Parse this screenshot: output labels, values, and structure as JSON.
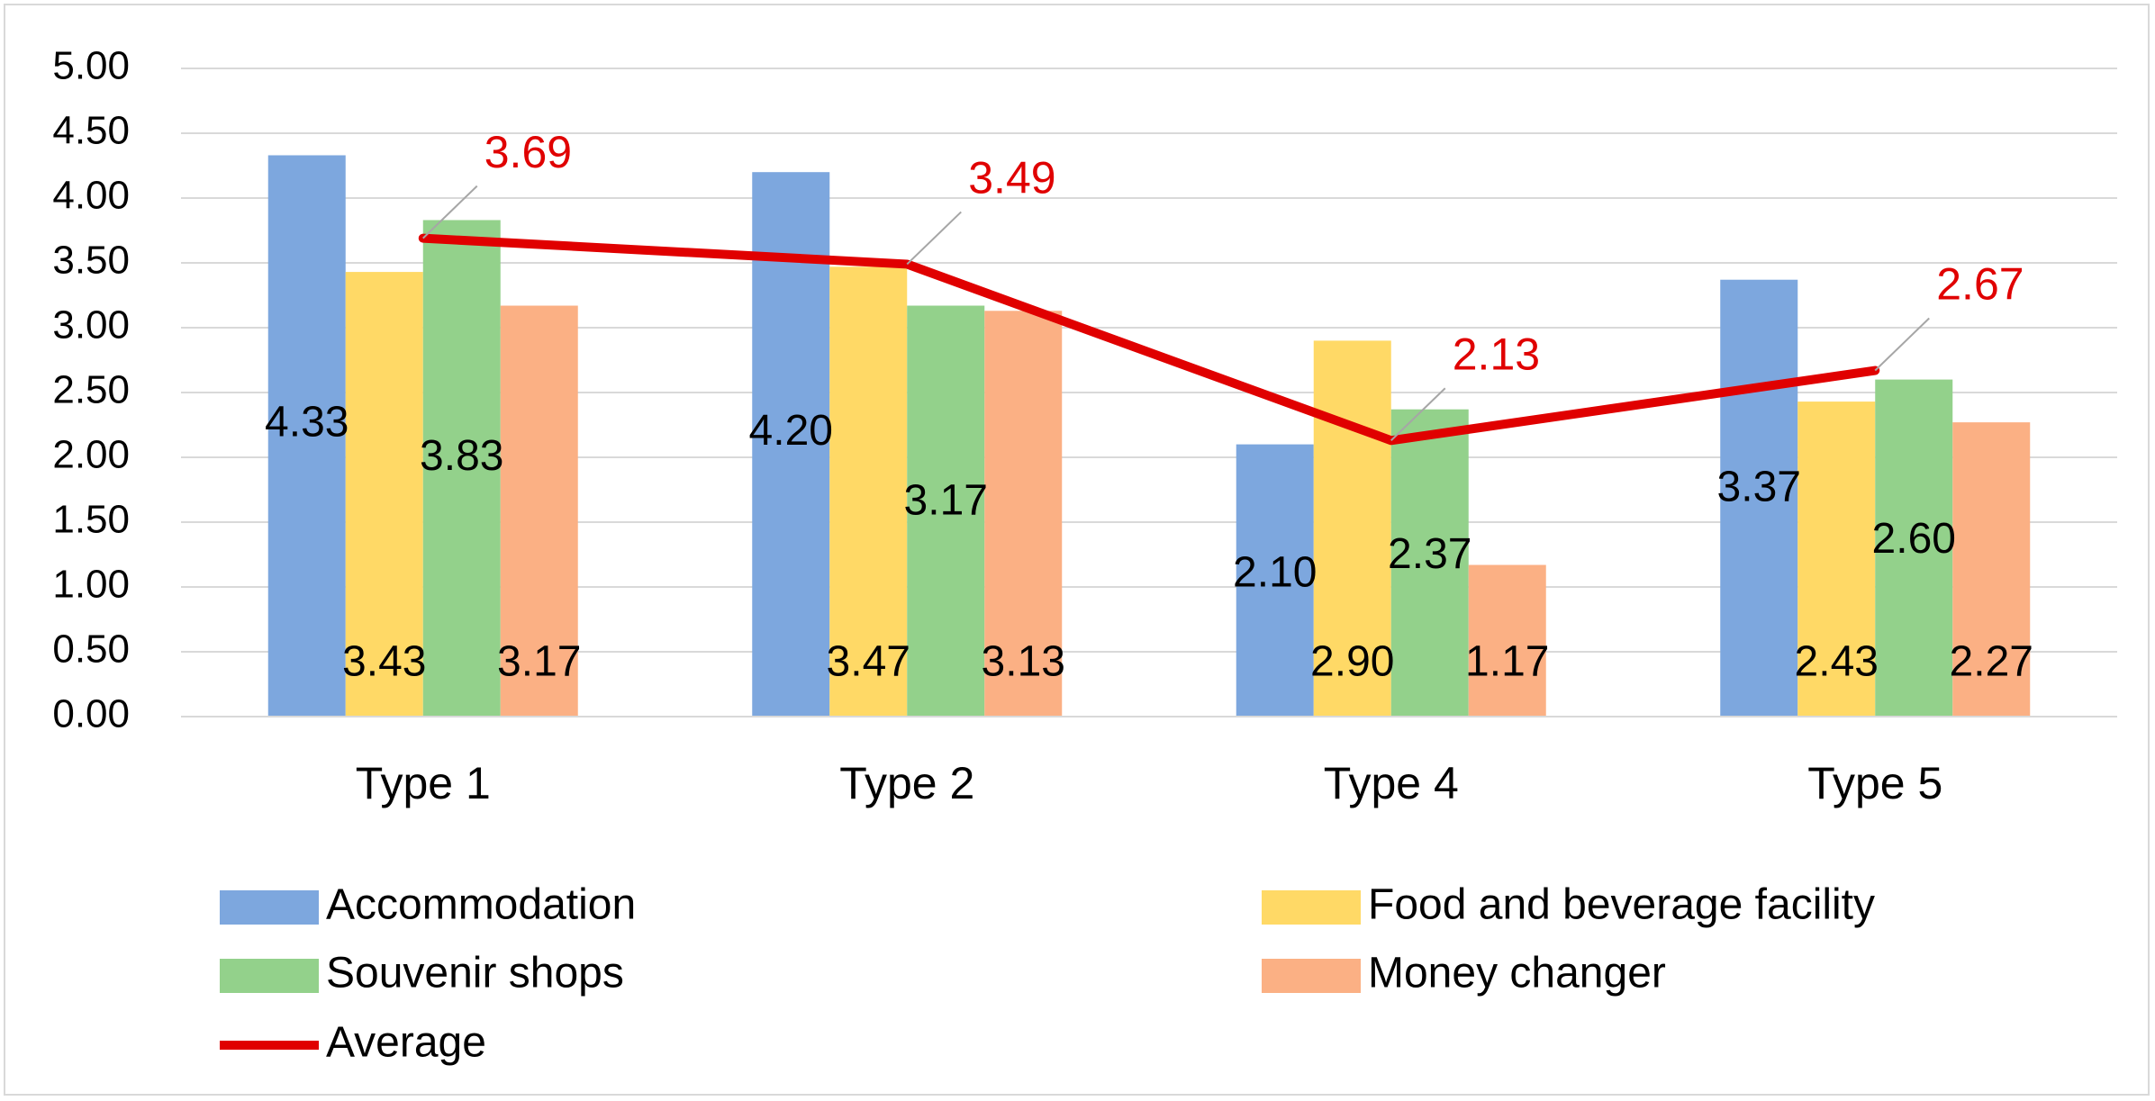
{
  "chart_data": {
    "type": "bar",
    "title": "",
    "xlabel": "",
    "ylabel": "",
    "categories": [
      "Type 1",
      "Type 2",
      "Type 4",
      "Type 5"
    ],
    "ylim": [
      0,
      5
    ],
    "ytick_step": 0.5,
    "yticks": [
      "0.00",
      "0.50",
      "1.00",
      "1.50",
      "2.00",
      "2.50",
      "3.00",
      "3.50",
      "4.00",
      "4.50",
      "5.00"
    ],
    "grid": true,
    "legend_position": "bottom",
    "series": [
      {
        "name": "Accommodation",
        "color": "#7da7de",
        "values": [
          4.33,
          4.2,
          2.1,
          3.37
        ],
        "labels": [
          "4.33",
          "4.20",
          "2.10",
          "3.37"
        ]
      },
      {
        "name": "Food and beverage facility",
        "color": "#ffd966",
        "values": [
          3.43,
          3.47,
          2.9,
          2.43
        ],
        "labels": [
          "3.43",
          "3.47",
          "2.90",
          "2.43"
        ]
      },
      {
        "name": "Souvenir shops",
        "color": "#93d18b",
        "values": [
          3.83,
          3.17,
          2.37,
          2.6
        ],
        "labels": [
          "3.83",
          "3.17",
          "2.37",
          "2.60"
        ]
      },
      {
        "name": "Money changer",
        "color": "#fbb084",
        "values": [
          3.17,
          3.13,
          1.17,
          2.27
        ],
        "labels": [
          "3.17",
          "3.13",
          "1.17",
          "2.27"
        ]
      }
    ],
    "line_series": {
      "name": "Average",
      "type": "line",
      "color": "#e00000",
      "values": [
        3.69,
        3.49,
        2.13,
        2.67
      ],
      "labels": [
        "3.69",
        "3.49",
        "2.13",
        "2.67"
      ]
    }
  }
}
